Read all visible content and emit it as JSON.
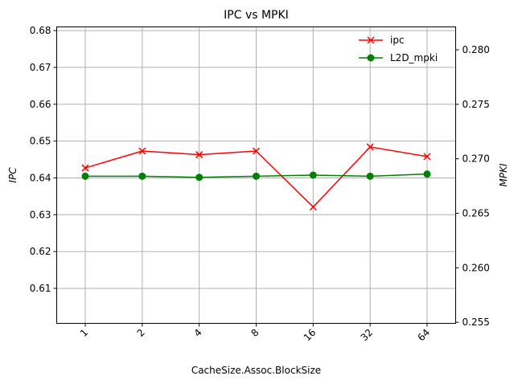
{
  "chart_data": {
    "type": "line",
    "title": "IPC vs MPKI",
    "xlabel": "CacheSize.Assoc.BlockSize",
    "ylabel_left": "IPC",
    "ylabel_right": "MPKI",
    "categories": [
      "1",
      "2",
      "4",
      "8",
      "16",
      "32",
      "64"
    ],
    "y_left": {
      "lim": [
        0.6005,
        0.681
      ],
      "ticks": [
        "0.61",
        "0.62",
        "0.63",
        "0.64",
        "0.65",
        "0.66",
        "0.67",
        "0.68"
      ]
    },
    "y_right": {
      "lim": [
        0.2549,
        0.2821
      ],
      "ticks": [
        "0.255",
        "0.260",
        "0.265",
        "0.270",
        "0.275",
        "0.280"
      ]
    },
    "grid": true,
    "legend_position": "top-right",
    "series": [
      {
        "name": "ipc",
        "axis": "left",
        "color": "#ff0000",
        "marker": "x",
        "values": [
          0.6427,
          0.6473,
          0.6463,
          0.6473,
          0.6321,
          0.6484,
          0.6458
        ]
      },
      {
        "name": "L2D_mpki",
        "axis": "right",
        "color": "#008000",
        "marker": "o",
        "values": [
          0.2684,
          0.2684,
          0.2683,
          0.2684,
          0.2685,
          0.2684,
          0.2686
        ]
      }
    ]
  }
}
